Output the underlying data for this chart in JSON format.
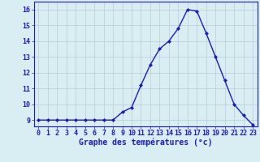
{
  "hours": [
    0,
    1,
    2,
    3,
    4,
    5,
    6,
    7,
    8,
    9,
    10,
    11,
    12,
    13,
    14,
    15,
    16,
    17,
    18,
    19,
    20,
    21,
    22,
    23
  ],
  "temps": [
    9.0,
    9.0,
    9.0,
    9.0,
    9.0,
    9.0,
    9.0,
    9.0,
    9.0,
    9.5,
    9.8,
    11.2,
    12.5,
    13.5,
    14.0,
    14.8,
    16.0,
    15.9,
    14.5,
    13.0,
    11.5,
    10.0,
    9.3,
    8.7
  ],
  "ylim": [
    8.6,
    16.5
  ],
  "yticks": [
    9,
    10,
    11,
    12,
    13,
    14,
    15,
    16
  ],
  "xlabel": "Graphe des températures (°c)",
  "line_color": "#1a1acd",
  "marker_color": "#1a1acd",
  "bg_color": "#d8eef2",
  "grid_color": "#b8cdd8",
  "xlabel_color": "#1a1acd",
  "tick_color": "#1a1acd",
  "tick_fontsize": 6.0,
  "xlabel_fontsize": 7.0,
  "linewidth": 1.0,
  "markersize": 2.0
}
